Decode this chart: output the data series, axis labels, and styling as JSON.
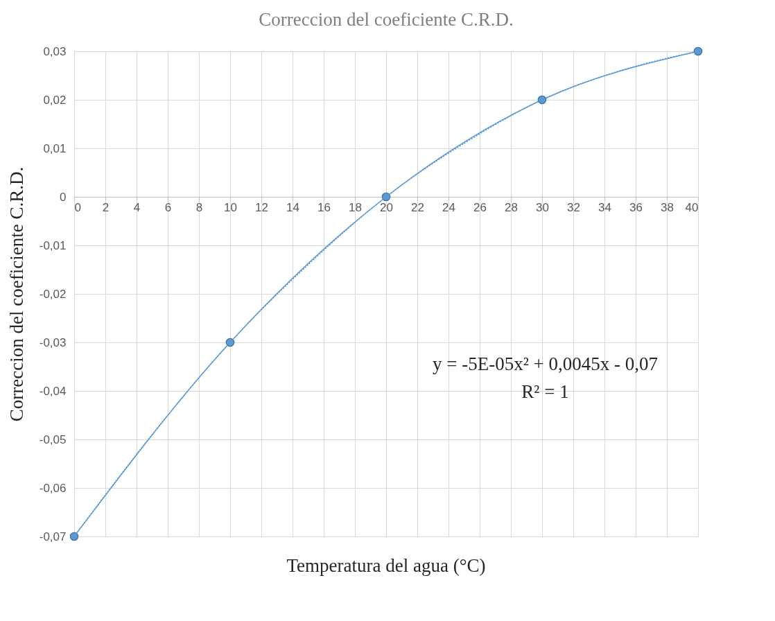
{
  "chart_data": {
    "type": "line",
    "title": "Correccion del coeficiente C.R.D.",
    "xlabel": "Temperatura del agua (°C)",
    "ylabel": "Correccion del coeficiente C.R.D.",
    "x": [
      0,
      10,
      20,
      30,
      40
    ],
    "series": [
      {
        "color": "#5b9bd5",
        "marker": "circle",
        "line_style": "solid",
        "values": [
          -0.07,
          -0.03,
          0,
          0.02,
          0.03
        ]
      },
      {
        "color": "#5b9bd5",
        "marker": "none",
        "line_style": "dotted",
        "x": [
          0,
          5,
          10,
          15,
          20,
          25,
          30,
          35,
          40
        ],
        "values": [
          -0.07,
          -0.049,
          -0.03,
          -0.014,
          0,
          0.011,
          0.02,
          0.026,
          0.03
        ]
      }
    ],
    "xlim": [
      0,
      40
    ],
    "xticks": [
      0,
      2,
      4,
      6,
      8,
      10,
      12,
      14,
      16,
      18,
      20,
      22,
      24,
      26,
      28,
      30,
      32,
      34,
      36,
      38,
      40
    ],
    "ylim": [
      -0.07,
      0.03
    ],
    "yticks": [
      {
        "value": -0.07,
        "label": "-0,07"
      },
      {
        "value": -0.06,
        "label": "-0,06"
      },
      {
        "value": -0.05,
        "label": "-0,05"
      },
      {
        "value": -0.04,
        "label": "-0,04"
      },
      {
        "value": -0.03,
        "label": "-0,03"
      },
      {
        "value": -0.02,
        "label": "-0,02"
      },
      {
        "value": -0.01,
        "label": "-0,01"
      },
      {
        "value": 0,
        "label": "0"
      },
      {
        "value": 0.01,
        "label": "0,01"
      },
      {
        "value": 0.02,
        "label": "0,02"
      },
      {
        "value": 0.03,
        "label": "0,03"
      }
    ],
    "annotations": [
      "y = -5E-05x² + 0,0045x - 0,07",
      "R² = 1"
    ],
    "grid": true
  }
}
